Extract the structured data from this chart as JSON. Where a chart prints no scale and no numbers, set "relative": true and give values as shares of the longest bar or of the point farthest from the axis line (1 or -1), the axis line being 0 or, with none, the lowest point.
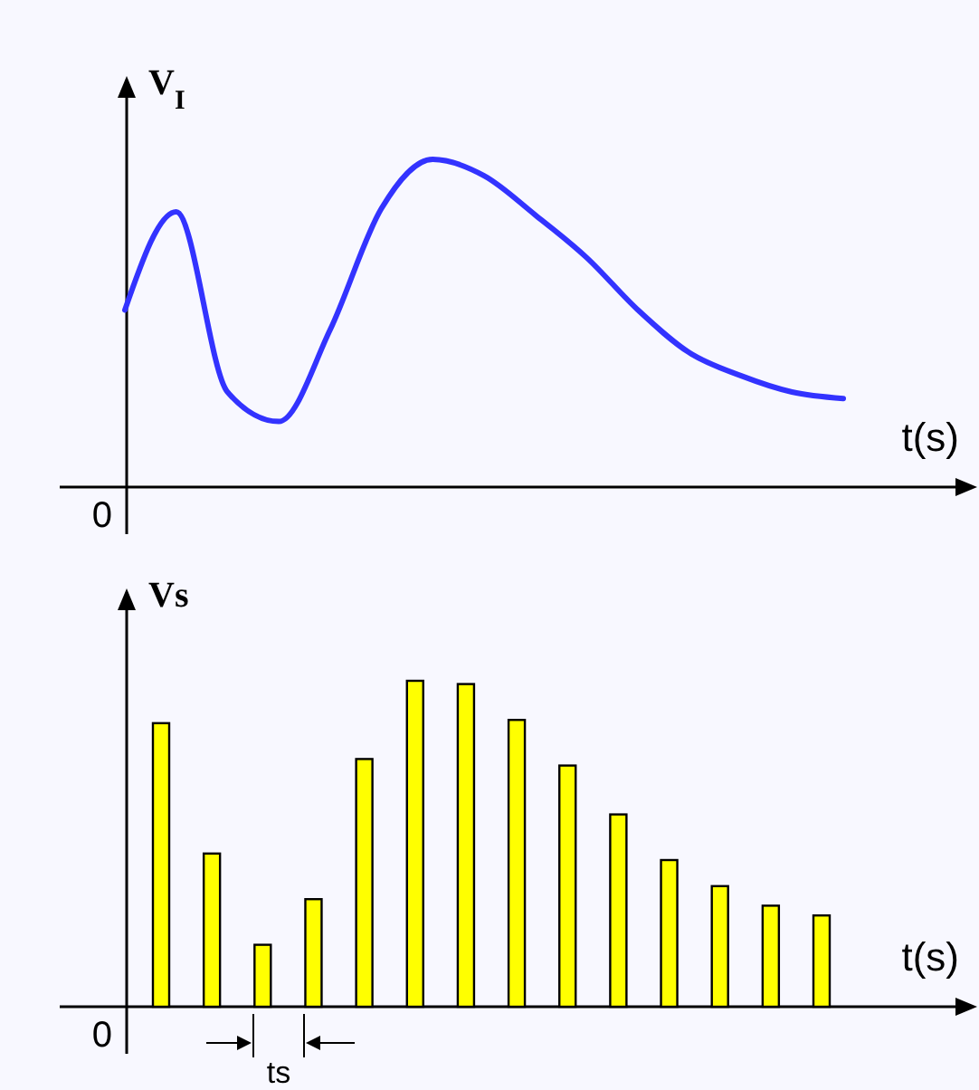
{
  "chart_data": [
    {
      "type": "line",
      "ylabel": "V$_{I}$",
      "xlabel": "t(s)",
      "relative": true,
      "categories": [
        null,
        null,
        null,
        null,
        null,
        null,
        null,
        null,
        null,
        null,
        null,
        null,
        null,
        null,
        null
      ],
      "series": [
        {
          "color": "#3333ff",
          "values": [
            0.54,
            0.84,
            0.29,
            0.2,
            0.48,
            0.85,
            1.0,
            0.95,
            0.83,
            0.7,
            0.54,
            0.41,
            0.34,
            0.29,
            0.27
          ]
        }
      ],
      "annotations": [
        "0"
      ]
    },
    {
      "type": "bar",
      "ylabel": "Vs",
      "xlabel": "t(s)",
      "relative": true,
      "categories": [
        null,
        null,
        null,
        null,
        null,
        null,
        null,
        null,
        null,
        null,
        null,
        null,
        null,
        null
      ],
      "series": [
        {
          "color": "#ffff00",
          "values": [
            0.87,
            0.47,
            0.19,
            0.33,
            0.76,
            1.0,
            0.99,
            0.88,
            0.74,
            0.59,
            0.45,
            0.37,
            0.31,
            0.28
          ]
        }
      ],
      "annotations": [
        "0",
        "ts"
      ]
    }
  ]
}
